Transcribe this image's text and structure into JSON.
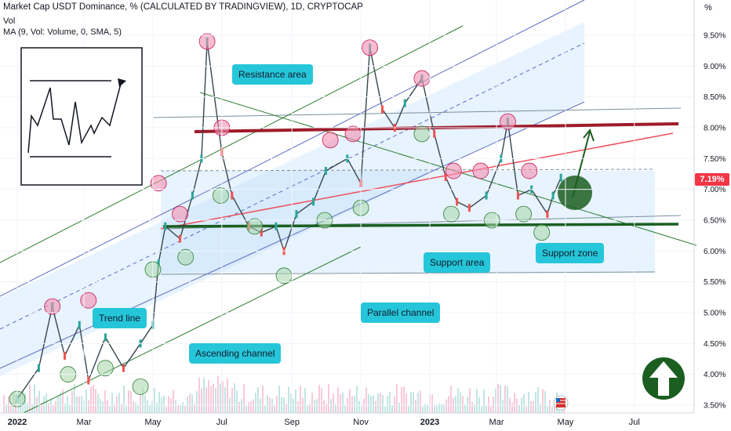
{
  "header": {
    "title": "Market Cap USDT Dominance, % (CALCULATED BY TRADINGVIEW), 1D, CRYPTOCAP",
    "volume_label": "Vol",
    "ma_label": "MA (9, Vol: Volume, 0, SMA, 5)",
    "percent_toggle": "%"
  },
  "colors": {
    "candle_up": "#26a69a",
    "candle_down": "#ef5350",
    "resistance": "#9e1b2a",
    "support": "#1b5e20",
    "trend_line": "#f0505a",
    "channel_line": "#2e7d32",
    "callout_bg": "#26c6da",
    "channel_fill": "#bbdefb",
    "circle_red": "#f48fb1",
    "circle_green": "#a5d6a7",
    "arrow_circle": "#1b5e20"
  },
  "annotations": [
    {
      "text": "Resistance area"
    },
    {
      "text": "Trend line"
    },
    {
      "text": "Ascending channel"
    },
    {
      "text": "Parallel channel"
    },
    {
      "text": "Support area"
    },
    {
      "text": "Support zone"
    }
  ],
  "last_price_label": "7.19%",
  "icons": [
    "up-arrow-circle-icon",
    "flag-icon"
  ],
  "chart_data": {
    "type": "line",
    "title": "Market Cap USDT Dominance, % (CALCULATED BY TRADINGVIEW), 1D, CRYPTOCAP",
    "y_unit": "%",
    "ylim": [
      3.4,
      10.0
    ],
    "y_ticks": [
      "3.50%",
      "4.00%",
      "4.50%",
      "5.00%",
      "5.50%",
      "6.00%",
      "6.50%",
      "7.00%",
      "7.50%",
      "8.00%",
      "8.50%",
      "9.00%",
      "9.50%"
    ],
    "x_ticks": [
      "2022",
      "Mar",
      "May",
      "Jul",
      "Sep",
      "Nov",
      "2023",
      "Mar",
      "May",
      "Jul"
    ],
    "last_value": 7.19,
    "x": [
      "2022-01-01",
      "2022-01-20",
      "2022-02-01",
      "2022-02-12",
      "2022-02-25",
      "2022-03-05",
      "2022-03-20",
      "2022-04-05",
      "2022-04-20",
      "2022-05-01",
      "2022-05-06",
      "2022-05-12",
      "2022-05-25",
      "2022-06-05",
      "2022-06-13",
      "2022-06-18",
      "2022-07-01",
      "2022-07-10",
      "2022-07-25",
      "2022-08-05",
      "2022-08-18",
      "2022-08-25",
      "2022-09-05",
      "2022-09-20",
      "2022-10-01",
      "2022-10-20",
      "2022-11-01",
      "2022-11-09",
      "2022-11-20",
      "2022-12-01",
      "2022-12-10",
      "2022-12-25",
      "2023-01-05",
      "2023-01-15",
      "2023-01-25",
      "2023-02-05",
      "2023-02-20",
      "2023-03-05",
      "2023-03-11",
      "2023-03-20",
      "2023-04-01",
      "2023-04-15",
      "2023-04-20",
      "2023-04-27"
    ],
    "series": [
      {
        "values": [
          3.6,
          4.1,
          5.1,
          4.3,
          4.8,
          3.9,
          4.6,
          4.1,
          4.5,
          4.8,
          5.8,
          6.4,
          6.2,
          6.9,
          7.5,
          9.4,
          7.6,
          6.9,
          6.4,
          6.3,
          6.4,
          6.0,
          6.6,
          6.8,
          7.3,
          7.5,
          7.1,
          9.3,
          8.3,
          8.0,
          8.4,
          8.8,
          7.9,
          7.2,
          6.8,
          6.7,
          6.9,
          7.5,
          8.1,
          6.9,
          7.0,
          6.6,
          6.9,
          7.19
        ]
      }
    ],
    "volume_overlay": true
  }
}
